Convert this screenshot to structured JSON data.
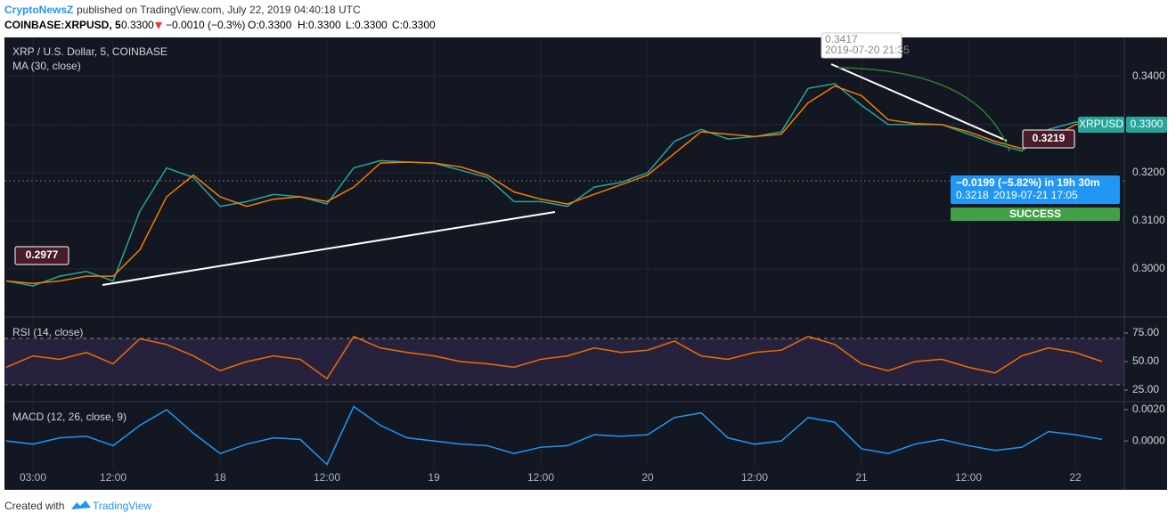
{
  "header": {
    "publisher": "CryptoNewsZ",
    "published": "published on TradingView.com, July 22, 2019 04:40:18 UTC",
    "symbol": "COINBASE:XRPUSD, 5",
    "last": "0.3300",
    "change": "−0.0010 (−0.3%)",
    "open": "O:0.3300",
    "high": "H:0.3300",
    "low": "L:0.3300",
    "close": "C:0.3300"
  },
  "chart_data": [
    {
      "type": "line",
      "categories": [
        null,
        "03:00",
        null,
        null,
        "12:00",
        null,
        null,
        null,
        "18",
        null,
        null,
        null,
        "12:00",
        null,
        null,
        null,
        "19",
        null,
        null,
        null,
        "12:00",
        null,
        null,
        null,
        "20",
        null,
        null,
        null,
        "12:00",
        null,
        null,
        null,
        "21",
        null,
        null,
        null,
        "12:00",
        null,
        null,
        null,
        "22",
        null
      ],
      "series": [
        {
          "name": "XRP / U.S. Dollar, 5, COINBASE",
          "color": "#26a69a",
          "values": [
            0.2975,
            0.2965,
            0.2985,
            0.2995,
            0.2975,
            0.312,
            0.321,
            0.319,
            0.313,
            0.314,
            0.3155,
            0.315,
            0.3135,
            0.321,
            0.3225,
            0.3222,
            0.322,
            0.3205,
            0.319,
            0.314,
            0.314,
            0.313,
            0.317,
            0.318,
            0.32,
            0.3265,
            0.329,
            0.327,
            0.3275,
            0.3285,
            0.3375,
            0.3385,
            0.334,
            0.33,
            0.33,
            0.33,
            0.328,
            0.326,
            0.3245,
            0.329,
            0.3305,
            0.33
          ]
        },
        {
          "name": "MA (30, close)",
          "color": "#f57c00",
          "values": [
            0.2975,
            0.297,
            0.2975,
            0.2985,
            0.2985,
            0.304,
            0.315,
            0.3195,
            0.315,
            0.313,
            0.3145,
            0.315,
            0.314,
            0.317,
            0.322,
            0.3222,
            0.322,
            0.3212,
            0.3195,
            0.316,
            0.3145,
            0.3135,
            0.3155,
            0.3175,
            0.3195,
            0.324,
            0.3285,
            0.328,
            0.3275,
            0.328,
            0.3345,
            0.338,
            0.336,
            0.331,
            0.3302,
            0.33,
            0.3285,
            0.3265,
            0.325,
            0.327,
            0.33,
            0.3302
          ]
        }
      ],
      "ylim": [
        0.2902,
        0.3481
      ],
      "yticks": [
        {
          "value": 0.3,
          "label": "0.3000"
        },
        {
          "value": 0.31,
          "label": "0.3100"
        },
        {
          "value": 0.32,
          "label": "0.3200"
        },
        {
          "value": 0.33,
          "label": "0.3300"
        },
        {
          "value": 0.34,
          "label": "0.3400"
        }
      ],
      "grid": true,
      "annotations": [
        "0.2977",
        "0.3219",
        "0.3417",
        "2019-07-20 21:35",
        "−0.0199 (−5.82%) in 19h 30m",
        "0.3218",
        "2019-07-21 17:05",
        "SUCCESS",
        "XRPUSD",
        "0.3300"
      ]
    },
    {
      "type": "line",
      "series": [
        {
          "name": "RSI (14, close)",
          "color": "#ef6c00",
          "values": [
            45,
            55,
            52,
            58,
            48,
            70,
            65,
            55,
            42,
            50,
            55,
            52,
            35,
            72,
            62,
            58,
            55,
            50,
            48,
            45,
            52,
            55,
            62,
            58,
            60,
            68,
            55,
            52,
            58,
            60,
            72,
            65,
            48,
            42,
            50,
            52,
            45,
            40,
            55,
            62,
            58,
            50
          ]
        }
      ],
      "ylim": [
        15.6,
        88.3
      ],
      "yticks": [
        {
          "value": 25,
          "label": "25.00"
        },
        {
          "value": 50,
          "label": "50.00"
        },
        {
          "value": 75,
          "label": "75.00"
        }
      ],
      "grid": false
    },
    {
      "type": "line",
      "series": [
        {
          "name": "MACD (12, 26, close, 9)",
          "color": "#2196f3",
          "values": [
            0,
            -0.0002,
            0.0002,
            0.0003,
            -0.0003,
            0.001,
            0.002,
            0.0005,
            -0.0008,
            -0.0002,
            0.0002,
            0.0001,
            -0.0015,
            0.0022,
            0.001,
            0.0002,
            0,
            -0.0002,
            -0.0003,
            -0.0008,
            -0.0004,
            -0.0003,
            0.0004,
            0.0003,
            0.0004,
            0.0015,
            0.0018,
            0.0002,
            -0.0002,
            0,
            0.0015,
            0.0012,
            -0.0005,
            -0.0008,
            -0.0002,
            0.0001,
            -0.0003,
            -0.0006,
            -0.0004,
            0.0006,
            0.0004,
            0.0001
          ]
        }
      ],
      "ylim": [
        -0.0017,
        0.00246
      ],
      "yticks": [
        {
          "value": 0,
          "label": "0.0000"
        },
        {
          "value": 0.002,
          "label": "0.0020"
        }
      ],
      "grid": false
    }
  ],
  "footer": {
    "text": "Created with",
    "brand": "TradingView"
  }
}
